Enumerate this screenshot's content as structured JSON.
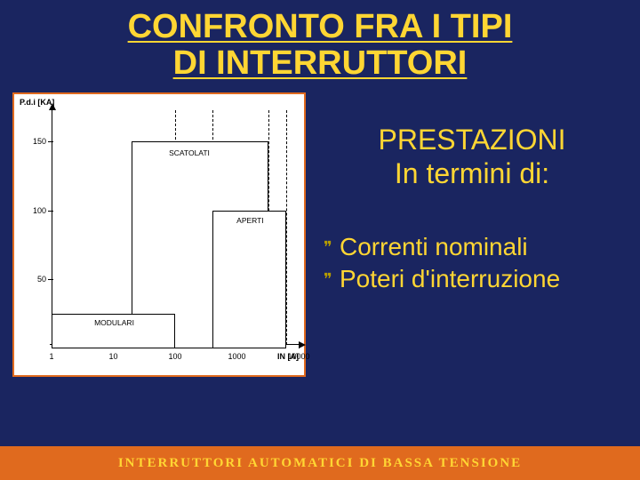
{
  "title_line1": "CONFRONTO FRA I TIPI",
  "title_line2": "DI INTERRUTTORI",
  "subtitle_line1": "PRESTAZIONI",
  "subtitle_line2": "In termini di:",
  "bullets": [
    "Correnti nominali",
    "Poteri d'interruzione"
  ],
  "footer": "INTERRUTTORI  AUTOMATICI  DI  BASSA  TENSIONE",
  "chart": {
    "type": "bar",
    "y_label": "P.d.i [KA]",
    "x_label": "IN [A]",
    "background_color": "#ffffff",
    "axis_color": "#000000",
    "frame_color": "#e06a1e",
    "x_scale": "log",
    "xlim": [
      1,
      10000
    ],
    "ylim": [
      0,
      170
    ],
    "y_ticks": [
      50,
      100,
      150
    ],
    "x_ticks": [
      1,
      10,
      100,
      1000,
      10000
    ],
    "bars": [
      {
        "label": "MODULARI",
        "x_start": 1,
        "x_end": 100,
        "height": 25
      },
      {
        "label": "SCATOLATI",
        "x_start": 20,
        "x_end": 3200,
        "height": 150
      },
      {
        "label": "APERTI",
        "x_start": 400,
        "x_end": 6300,
        "height": 100
      }
    ],
    "guides": [
      100,
      400,
      3200,
      6300
    ],
    "bar_fill": "#ffffff",
    "bar_border_color": "#000000",
    "label_fontsize": 9
  },
  "colors": {
    "slide_bg": "#1a2560",
    "accent": "#ffd633",
    "footer_bg": "#e06a1e"
  }
}
